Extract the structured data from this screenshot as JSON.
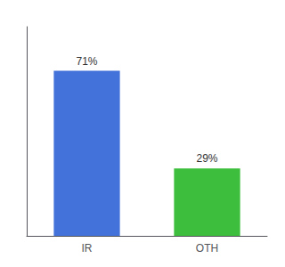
{
  "chart_data": {
    "type": "bar",
    "categories": [
      "IR",
      "OTH"
    ],
    "values": [
      71,
      29
    ],
    "colors": [
      "#4472db",
      "#3dbf3d"
    ],
    "data_labels": true,
    "value_labels": [
      "71%",
      "29%"
    ],
    "ylim": [
      0,
      90
    ],
    "tick_labels": "x",
    "grid": false
  }
}
